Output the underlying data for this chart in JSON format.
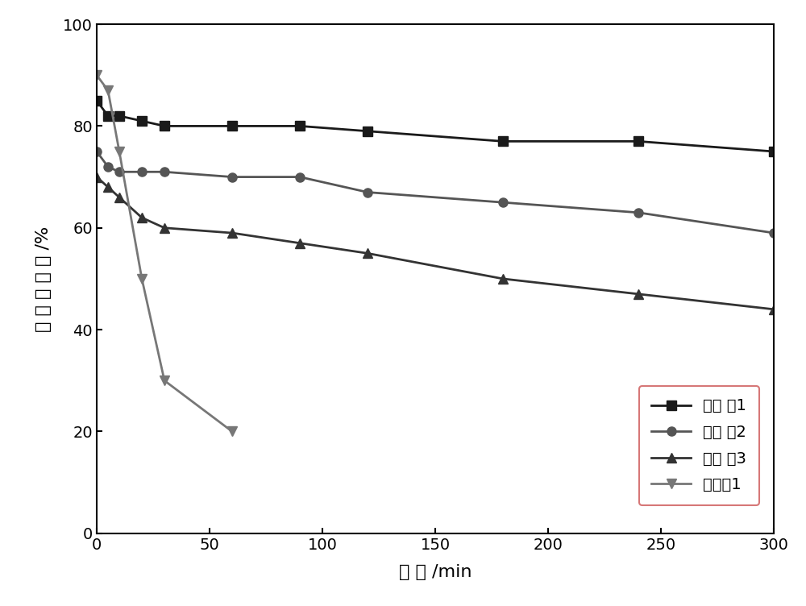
{
  "series": [
    {
      "label": "实施 例1",
      "x": [
        0,
        5,
        10,
        20,
        30,
        60,
        90,
        120,
        180,
        240,
        300
      ],
      "y": [
        85,
        82,
        82,
        81,
        80,
        80,
        80,
        79,
        77,
        77,
        75
      ],
      "marker": "s",
      "color": "#1a1a1a"
    },
    {
      "label": "实施 例2",
      "x": [
        0,
        5,
        10,
        20,
        30,
        60,
        90,
        120,
        180,
        240,
        300
      ],
      "y": [
        75,
        72,
        71,
        71,
        71,
        70,
        70,
        67,
        65,
        63,
        59
      ],
      "marker": "o",
      "color": "#555555"
    },
    {
      "label": "实施 例3",
      "x": [
        0,
        5,
        10,
        20,
        30,
        60,
        90,
        120,
        180,
        240,
        300
      ],
      "y": [
        70,
        68,
        66,
        62,
        60,
        59,
        57,
        55,
        50,
        47,
        44
      ],
      "marker": "^",
      "color": "#333333"
    },
    {
      "label": "对比例1",
      "x": [
        0,
        5,
        10,
        20,
        30,
        60
      ],
      "y": [
        90,
        87,
        75,
        50,
        30,
        20
      ],
      "marker": "v",
      "color": "#777777"
    }
  ],
  "xlabel": "时 间 /min",
  "ylabel": "甲 醒 转 化 率 /%",
  "xlim": [
    0,
    300
  ],
  "ylim": [
    0,
    100
  ],
  "xticks": [
    0,
    50,
    100,
    150,
    200,
    250,
    300
  ],
  "yticks": [
    0,
    20,
    40,
    60,
    80,
    100
  ],
  "background_color": "#ffffff",
  "linewidth": 2.0,
  "markersize": 8
}
